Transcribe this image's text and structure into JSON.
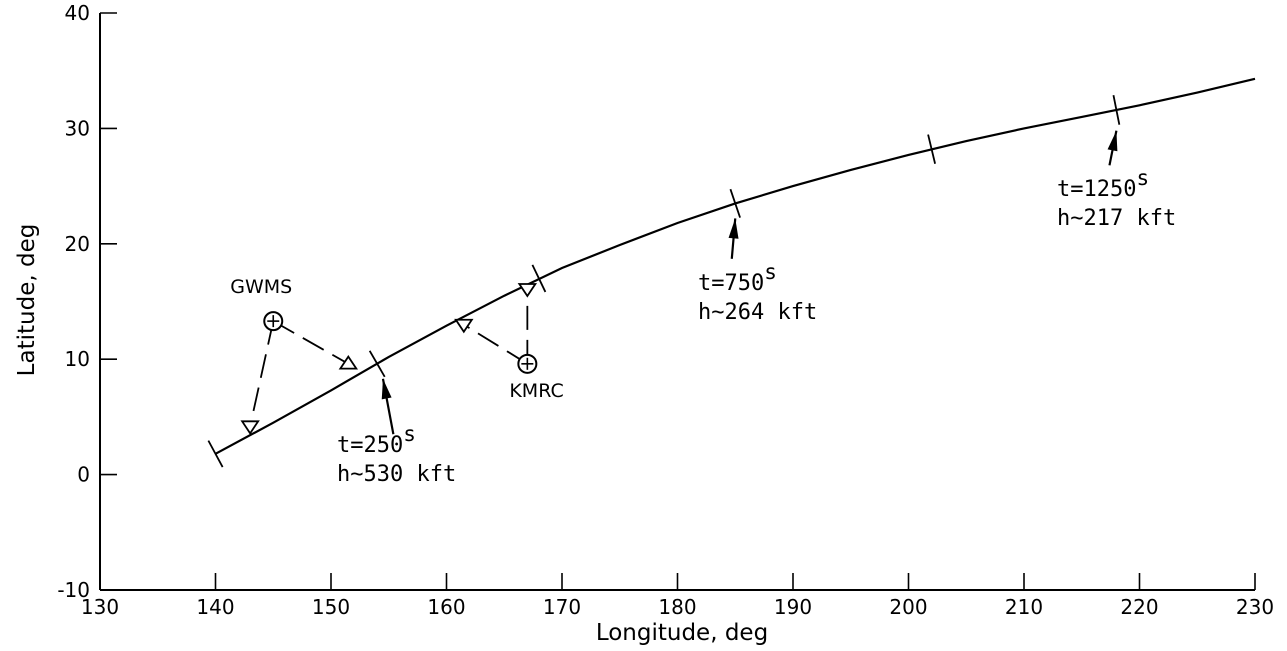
{
  "chart_data": {
    "type": "line",
    "title": "",
    "xlabel": "Longitude, deg",
    "ylabel": "Latitude, deg",
    "xlim": [
      130,
      230
    ],
    "ylim": [
      -10,
      40
    ],
    "xticks": [
      "130",
      "140",
      "150",
      "160",
      "170",
      "180",
      "190",
      "200",
      "210",
      "220",
      "230"
    ],
    "yticks": [
      "-10",
      "0",
      "10",
      "20",
      "30",
      "40"
    ],
    "grid": false,
    "series": [
      {
        "x": [
          140,
          145,
          150,
          155,
          160,
          165,
          170,
          175,
          180,
          185,
          190,
          195,
          200,
          205,
          210,
          215,
          220,
          225,
          230
        ],
        "y": [
          1.8,
          4.5,
          7.3,
          10.2,
          12.9,
          15.5,
          17.9,
          19.9,
          21.8,
          23.5,
          25.0,
          26.4,
          27.7,
          28.9,
          30.0,
          31.0,
          32.0,
          33.1,
          34.3
        ]
      }
    ],
    "tick_marks_on_track": [
      {
        "x": 140,
        "y": 1.8
      },
      {
        "x": 154,
        "y": 9.6
      },
      {
        "x": 168,
        "y": 17.0
      },
      {
        "x": 185,
        "y": 23.5
      },
      {
        "x": 202,
        "y": 28.2
      },
      {
        "x": 218,
        "y": 31.6
      }
    ],
    "stations": [
      {
        "name": "GWMS",
        "x": 145,
        "y": 13.3,
        "aos": {
          "x": 143,
          "y": 4.2
        },
        "los": {
          "x": 151.5,
          "y": 9.6
        }
      },
      {
        "name": "KMRC",
        "x": 167,
        "y": 9.6,
        "aos": {
          "x": 161.5,
          "y": 13.0
        },
        "los": {
          "x": 167,
          "y": 16.1
        }
      }
    ],
    "annotations": [
      {
        "line1": "t=250",
        "sup": "s",
        "line2": "h~530 kft",
        "arrow_tip": {
          "x": 154.5,
          "y": 8.3
        },
        "arrow_tail": {
          "x": 155.4,
          "y": 3.5
        }
      },
      {
        "line1": "t=750",
        "sup": "s",
        "line2": "h~264 kft",
        "arrow_tip": {
          "x": 185,
          "y": 22.2
        },
        "arrow_tail": {
          "x": 184.7,
          "y": 18.7
        }
      },
      {
        "line1": "t=1250",
        "sup": "s",
        "line2": "h~217 kft",
        "arrow_tip": {
          "x": 218,
          "y": 29.8
        },
        "arrow_tail": {
          "x": 217.4,
          "y": 26.8
        }
      }
    ]
  }
}
